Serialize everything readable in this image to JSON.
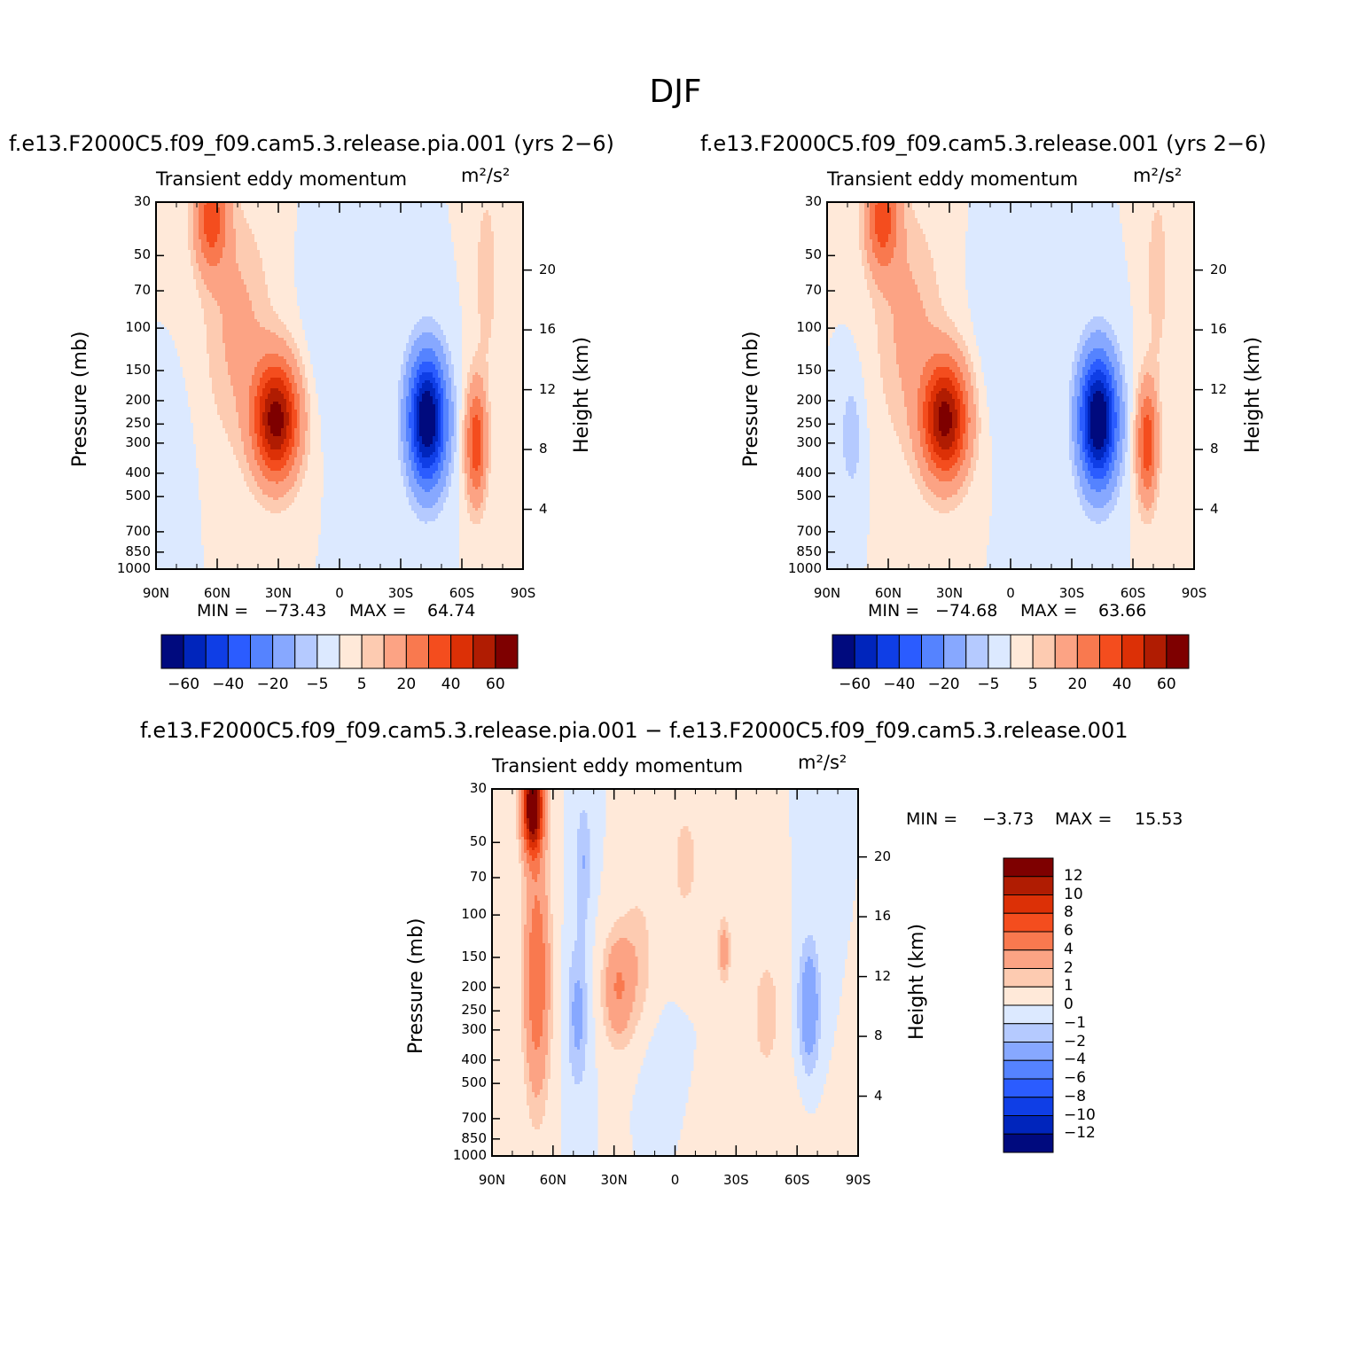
{
  "page": {
    "title": "DJF"
  },
  "colors": {
    "abs_levels": [
      "#000a7e",
      "#0025bc",
      "#0f3ee6",
      "#2b5cff",
      "#5583ff",
      "#87a8ff",
      "#b5caff",
      "#dce9ff",
      "#ffe9d9",
      "#fdcbb1",
      "#fca384",
      "#f9794f",
      "#f44d1e",
      "#dc3006",
      "#b01c02",
      "#7e0000"
    ],
    "diff_levels": [
      "#000a7e",
      "#0025bc",
      "#0f3ee6",
      "#2b5cff",
      "#5583ff",
      "#87a8ff",
      "#b5caff",
      "#dce9ff",
      "#ffe9d9",
      "#fdcbb1",
      "#fca384",
      "#f9794f",
      "#f44d1e",
      "#dc3006",
      "#b01c02",
      "#7e0000"
    ]
  },
  "panels": [
    {
      "case": "f.e13.F2000C5.f09_f09.cam5.3.release.pia.001 (yrs 2−6)",
      "variable": "Transient eddy momentum",
      "units": "m²/s²",
      "min_label": "MIN =",
      "min_value": "−73.43",
      "max_label": "MAX =",
      "max_value": "64.74",
      "colorbar_ticks": [
        "−60",
        "−40",
        "−20",
        "−5",
        "5",
        "20",
        "40",
        "60"
      ]
    },
    {
      "case": "f.e13.F2000C5.f09_f09.cam5.3.release.001 (yrs 2−6)",
      "variable": "Transient eddy momentum",
      "units": "m²/s²",
      "min_label": "MIN =",
      "min_value": "−74.68",
      "max_label": "MAX =",
      "max_value": "63.66",
      "colorbar_ticks": [
        "−60",
        "−40",
        "−20",
        "−5",
        "5",
        "20",
        "40",
        "60"
      ]
    },
    {
      "case": "f.e13.F2000C5.f09_f09.cam5.3.release.pia.001 − f.e13.F2000C5.f09_f09.cam5.3.release.001",
      "variable": "Transient eddy momentum",
      "units": "m²/s²",
      "min_label": "MIN =",
      "min_value": "−3.73",
      "max_label": "MAX =",
      "max_value": "15.53",
      "colorbar_ticks": [
        "12",
        "10",
        "8",
        "6",
        "4",
        "2",
        "1",
        "0",
        "−1",
        "−2",
        "−4",
        "−6",
        "−8",
        "−10",
        "−12"
      ]
    }
  ],
  "axes": {
    "y_label": "Pressure (mb)",
    "y2_label": "Height (km)",
    "pressure_ticks": [
      "30",
      "50",
      "70",
      "100",
      "150",
      "200",
      "250",
      "300",
      "400",
      "500",
      "700",
      "850",
      "1000"
    ],
    "height_ticks": [
      "20",
      "16",
      "12",
      "8",
      "4"
    ],
    "lat_ticks": [
      "90N",
      "60N",
      "30N",
      "0",
      "30S",
      "60S",
      "90S"
    ]
  },
  "chart_data": [
    {
      "type": "heatmap",
      "title": "Transient eddy momentum",
      "xlabel": "",
      "ylabel": "Pressure (mb)",
      "x_range": [
        90,
        -90
      ],
      "y_range": [
        1000,
        30
      ],
      "features": [
        {
          "lat": 31,
          "p": 240,
          "value": 64.7
        },
        {
          "lat": -43,
          "p": 240,
          "value": -73.4
        },
        {
          "lat": -67,
          "p": 300,
          "value": 38
        },
        {
          "lat": 63,
          "p": 35,
          "value": 35
        },
        {
          "lat": 2,
          "p": 100,
          "value": -5
        }
      ],
      "min": -73.43,
      "max": 64.74,
      "contour_levels": [
        -60,
        -50,
        -40,
        -30,
        -20,
        -10,
        -5,
        0,
        5,
        10,
        20,
        30,
        40,
        50,
        60
      ]
    },
    {
      "type": "heatmap",
      "title": "Transient eddy momentum",
      "xlabel": "",
      "ylabel": "Pressure (mb)",
      "x_range": [
        90,
        -90
      ],
      "y_range": [
        1000,
        30
      ],
      "features": [
        {
          "lat": 32,
          "p": 240,
          "value": 63.7
        },
        {
          "lat": -43,
          "p": 240,
          "value": -74.7
        },
        {
          "lat": -67,
          "p": 300,
          "value": 38
        },
        {
          "lat": 63,
          "p": 35,
          "value": 35
        },
        {
          "lat": 78,
          "p": 280,
          "value": -8
        }
      ],
      "min": -74.68,
      "max": 63.66,
      "contour_levels": [
        -60,
        -50,
        -40,
        -30,
        -20,
        -10,
        -5,
        0,
        5,
        10,
        20,
        30,
        40,
        50,
        60
      ]
    },
    {
      "type": "heatmap",
      "title": "Transient eddy momentum",
      "xlabel": "",
      "ylabel": "Pressure (mb)",
      "x_range": [
        90,
        -90
      ],
      "y_range": [
        1000,
        30
      ],
      "features": [
        {
          "lat": 70,
          "p": 35,
          "value": 15.5
        },
        {
          "lat": 68,
          "p": 120,
          "value": 6
        },
        {
          "lat": 50,
          "p": 260,
          "value": -2.5
        },
        {
          "lat": 28,
          "p": 200,
          "value": 4
        },
        {
          "lat": -24,
          "p": 140,
          "value": 3
        },
        {
          "lat": -66,
          "p": 240,
          "value": -3.7
        }
      ],
      "min": -3.73,
      "max": 15.53,
      "contour_levels": [
        -12,
        -10,
        -8,
        -6,
        -4,
        -2,
        -1,
        0,
        1,
        2,
        4,
        6,
        8,
        10,
        12
      ]
    }
  ]
}
